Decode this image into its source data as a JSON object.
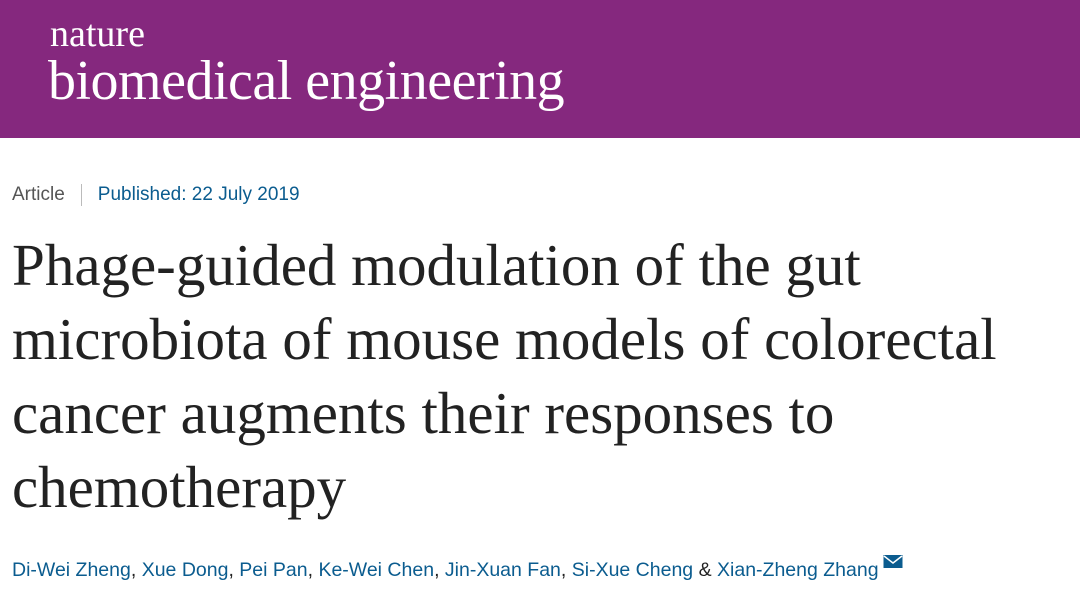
{
  "header": {
    "brand_small": "nature",
    "brand_large": "biomedical engineering"
  },
  "article": {
    "type": "Article",
    "published": "Published: 22 July 2019",
    "title": "Phage-guided modulation of the gut microbiota of mouse models of colorectal cancer augments their responses to chemotherapy",
    "authors": [
      "Di-Wei Zheng",
      "Xue Dong",
      "Pei Pan",
      "Ke-Wei Chen",
      "Jin-Xuan Fan",
      "Si-Xue Cheng",
      "Xian-Zheng Zhang"
    ],
    "separator": ",",
    "conjunction": "&"
  }
}
